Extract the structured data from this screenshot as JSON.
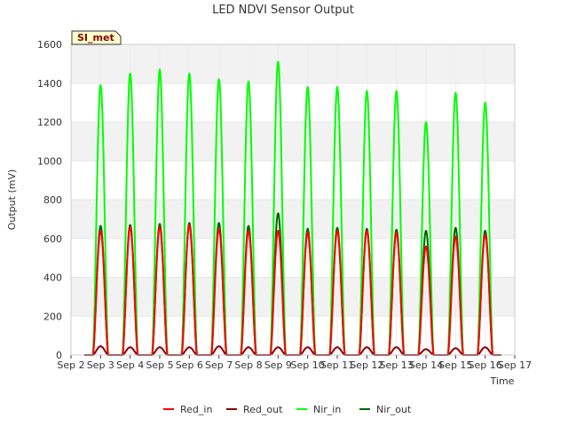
{
  "chart_data": {
    "type": "line",
    "title": "LED NDVI Sensor Output",
    "xlabel": "Time",
    "ylabel": "Output (mV)",
    "ylim": [
      0,
      1600
    ],
    "yticks": [
      0,
      200,
      400,
      600,
      800,
      1000,
      1200,
      1400,
      1600
    ],
    "xlim": [
      2,
      17
    ],
    "xticks": [
      2,
      3,
      4,
      5,
      6,
      7,
      8,
      9,
      10,
      11,
      12,
      13,
      14,
      15,
      16,
      17
    ],
    "xtick_labels": [
      "Sep 2",
      "Sep 3",
      "Sep 4",
      "Sep 5",
      "Sep 6",
      "Sep 7",
      "Sep 8",
      "Sep 9",
      "Sep 10",
      "Sep 11",
      "Sep 12",
      "Sep 13",
      "Sep 14",
      "Sep 15",
      "Sep 16",
      "Sep 17"
    ],
    "badge": "SI_met",
    "legend_position": "bottom-center",
    "series": [
      {
        "name": "Red_in",
        "color": "#ff0000",
        "daily_peak_days": [
          3,
          4,
          5,
          6,
          7,
          8,
          9,
          10,
          11,
          12,
          13,
          14,
          15,
          16
        ],
        "daily_peaks": [
          640,
          660,
          660,
          670,
          650,
          640,
          640,
          630,
          640,
          640,
          630,
          560,
          610,
          620
        ]
      },
      {
        "name": "Red_out",
        "color": "#8b0000",
        "daily_peak_days": [
          3,
          4,
          5,
          6,
          7,
          8,
          9,
          10,
          11,
          12,
          13,
          14,
          15,
          16
        ],
        "daily_peaks": [
          45,
          40,
          40,
          40,
          45,
          40,
          40,
          40,
          40,
          40,
          40,
          30,
          35,
          40
        ]
      },
      {
        "name": "Nir_in",
        "color": "#00ff00",
        "daily_peak_days": [
          3,
          4,
          5,
          6,
          7,
          8,
          9,
          10,
          11,
          12,
          13,
          14,
          15,
          16
        ],
        "daily_peaks": [
          1390,
          1450,
          1470,
          1450,
          1420,
          1410,
          1510,
          1380,
          1380,
          1360,
          1360,
          1200,
          1350,
          1300
        ]
      },
      {
        "name": "Nir_out",
        "color": "#006400",
        "daily_peak_days": [
          3,
          4,
          5,
          6,
          7,
          8,
          9,
          10,
          11,
          12,
          13,
          14,
          15,
          16
        ],
        "daily_peaks": [
          665,
          670,
          675,
          680,
          680,
          665,
          730,
          650,
          655,
          650,
          645,
          640,
          655,
          640
        ]
      }
    ]
  }
}
